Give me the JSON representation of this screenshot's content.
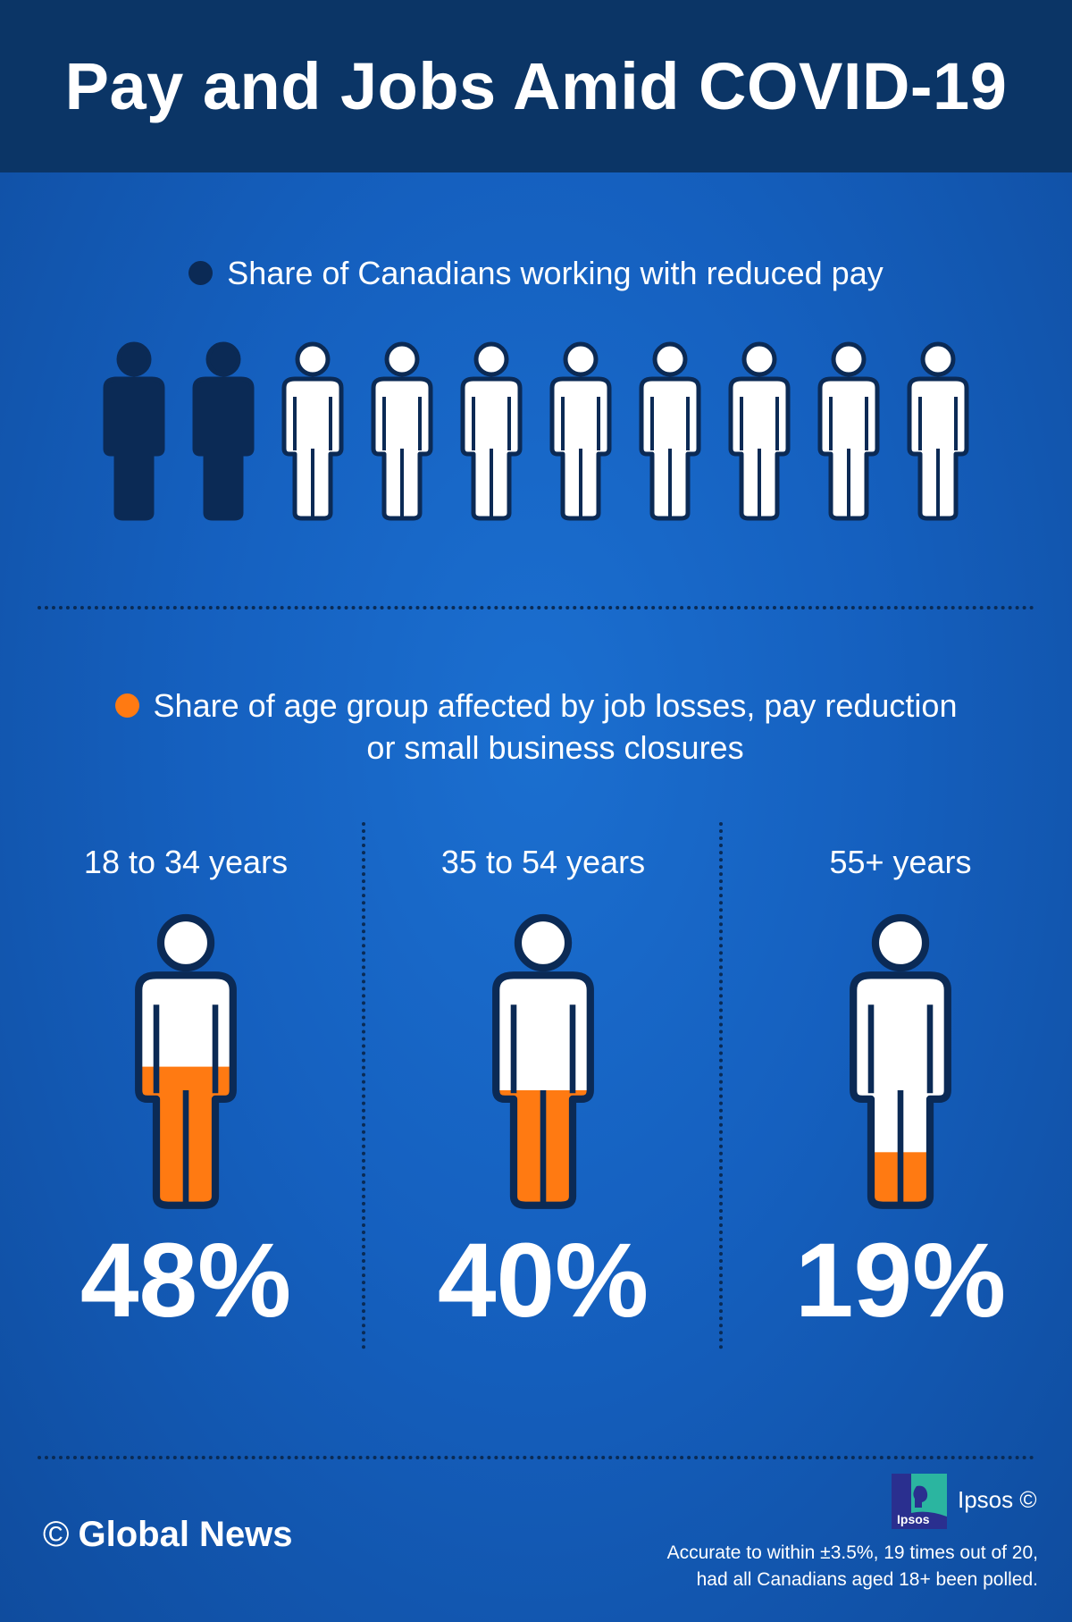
{
  "title": "Pay and Jobs Amid COVID-19",
  "colors": {
    "header_bg": "#0b3566",
    "dark_fill": "#0b2a55",
    "light_fill": "#ffffff",
    "accent_orange": "#ff7a12",
    "background": "#1560bf"
  },
  "section1": {
    "legend": "Share of Canadians working with reduced pay"
  },
  "section2": {
    "legend_line1": "Share of age group affected by job losses, pay reduction",
    "legend_line2": "or small business closures"
  },
  "chart_data": [
    {
      "type": "pictogram",
      "title": "Share of Canadians working with reduced pay",
      "icons_total": 10,
      "icons_filled": 2,
      "value_percent": 20
    },
    {
      "type": "bar",
      "title": "Share of age group affected by job losses, pay reduction or small business closures",
      "categories": [
        "18 to 34 years",
        "35 to 54 years",
        "55+ years"
      ],
      "values": [
        48,
        40,
        19
      ],
      "labels": [
        "48%",
        "40%",
        "19%"
      ],
      "unit": "%",
      "ylim": [
        0,
        100
      ]
    }
  ],
  "footer": {
    "copyright_symbol": "©",
    "brand": "Global News",
    "ipsos_logo_text": "Ipsos",
    "ipsos_label": "Ipsos ©",
    "note_line1": "Accurate to within ±3.5%, 19 times out of 20,",
    "note_line2": "had all Canadians aged 18+ been polled."
  }
}
